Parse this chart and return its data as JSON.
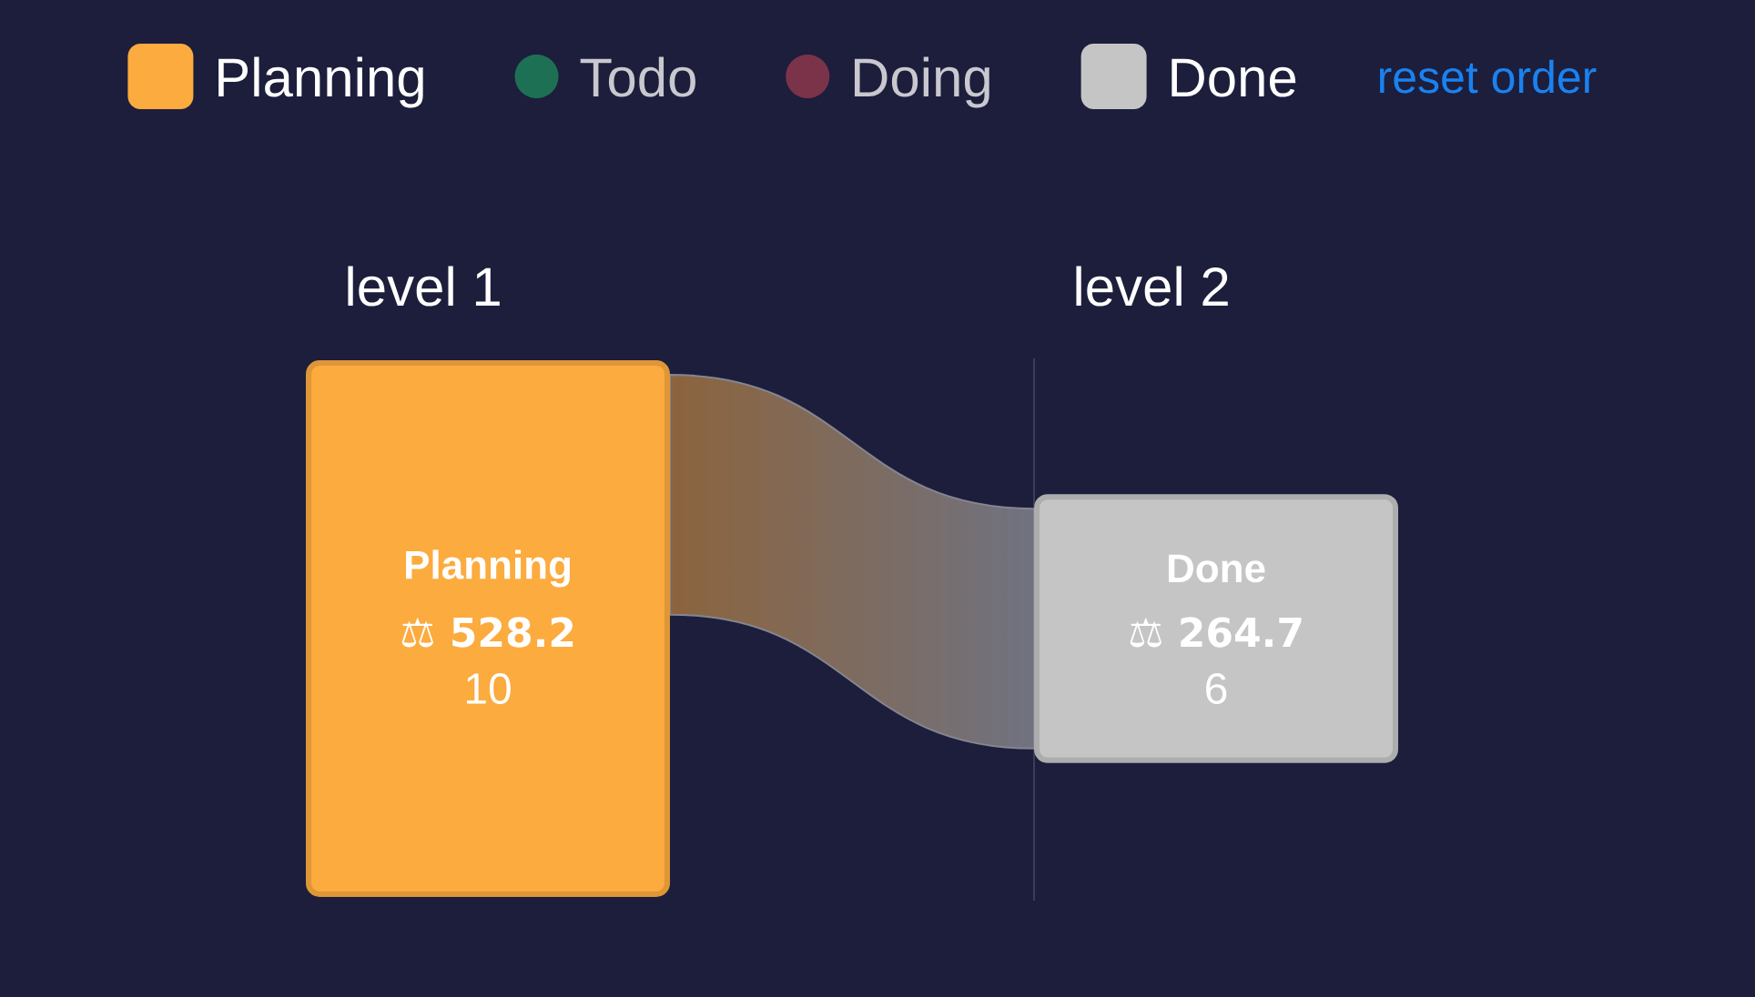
{
  "chart_data": {
    "type": "other",
    "categories": [
      "level 1",
      "level 2"
    ],
    "series": [
      {
        "name": "Planning",
        "color": "#fcab3e",
        "values": [
          528.2,
          null
        ],
        "value_labels": [
          "⚖ 528.2",
          null
        ]
      },
      {
        "name": "Todo",
        "color": "#1e7055",
        "values": [
          null,
          null
        ]
      },
      {
        "name": "Doing",
        "color": "#7b3349",
        "values": [
          null,
          null
        ]
      },
      {
        "name": "Done",
        "color": "#c5c5c5",
        "values": [
          null,
          264.7
        ],
        "value_labels": [
          null,
          "⚖ 264.7"
        ]
      }
    ],
    "legend": "top",
    "annotations": [
      "10",
      "6",
      "reset order"
    ]
  }
}
